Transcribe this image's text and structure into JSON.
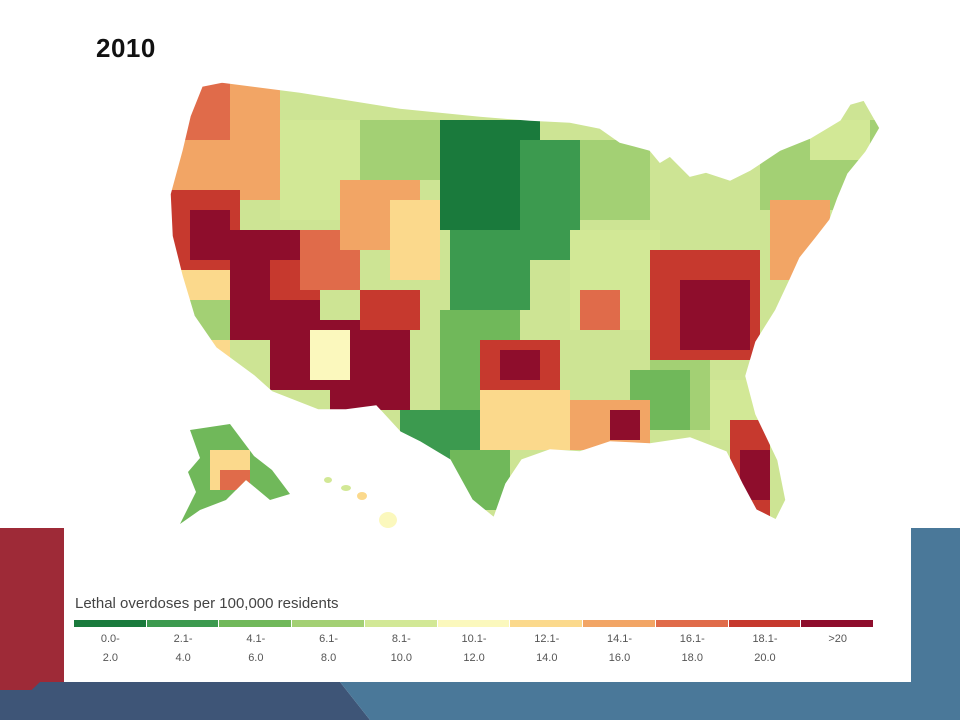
{
  "slide": {
    "title": "2010"
  },
  "legend": {
    "title": "Lethal overdoses per 100,000 residents",
    "bins": [
      {
        "l1": "0.0-",
        "l2": "2.0",
        "color": "#1a7a3c"
      },
      {
        "l1": "2.1-",
        "l2": "4.0",
        "color": "#3c9a4f"
      },
      {
        "l1": "4.1-",
        "l2": "6.0",
        "color": "#70b85a"
      },
      {
        "l1": "6.1-",
        "l2": "8.0",
        "color": "#a3d074"
      },
      {
        "l1": "8.1-",
        "l2": "10.0",
        "color": "#d2e896"
      },
      {
        "l1": "10.1-",
        "l2": "12.0",
        "color": "#fbf8bd"
      },
      {
        "l1": "12.1-",
        "l2": "14.0",
        "color": "#fbd98c"
      },
      {
        "l1": "14.1-",
        "l2": "16.0",
        "color": "#f2a565"
      },
      {
        "l1": "16.1-",
        "l2": "18.0",
        "color": "#e06b4a"
      },
      {
        "l1": "18.1-",
        "l2": "20.0",
        "color": "#c6392e"
      },
      {
        "l1": ">20",
        "l2": "",
        "color": "#8e0d2c"
      }
    ]
  },
  "colors": {
    "accent_red": "#9e2a37",
    "accent_blue": "#4a7899",
    "accent_navy": "#3e5577"
  }
}
